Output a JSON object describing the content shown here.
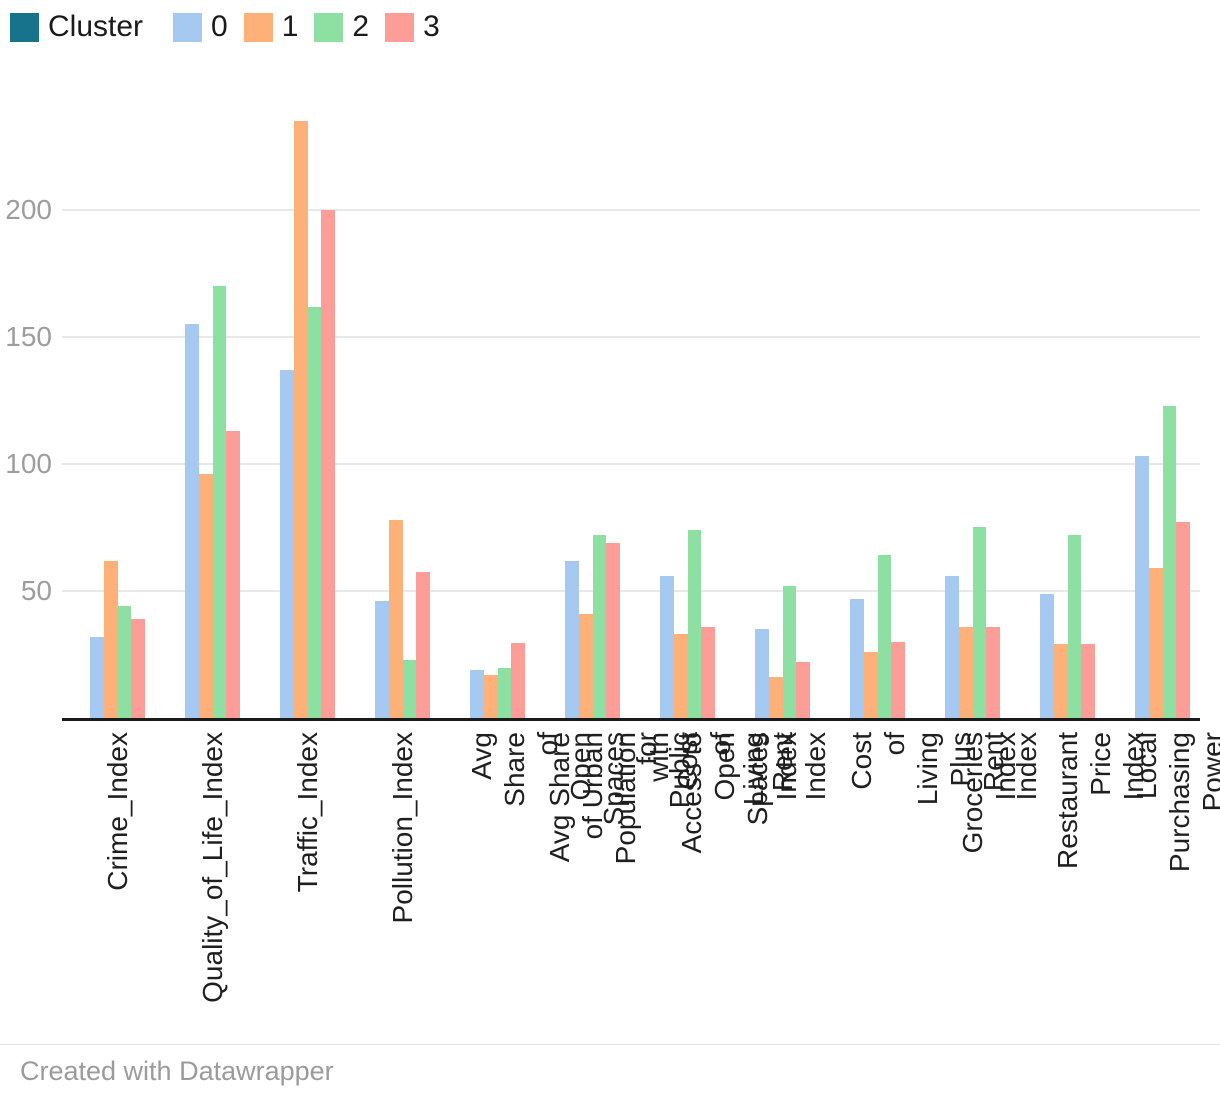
{
  "legend": {
    "title": "Cluster",
    "title_color": "#17738b",
    "items": [
      {
        "label": "0",
        "color": "#a6c9f2"
      },
      {
        "label": "1",
        "color": "#fdb179"
      },
      {
        "label": "2",
        "color": "#8de0a2"
      },
      {
        "label": "3",
        "color": "#fc9d98"
      }
    ]
  },
  "chart_data": {
    "type": "bar",
    "title": "",
    "xlabel": "",
    "ylabel": "",
    "categories": [
      "Crime_Index",
      "Quality_of_Life_Index",
      "Traffic_Index",
      "Pollution_Index",
      "Avg Share of Open Spaces\nfor Public",
      "Avg Share of Urban\nPopulation with Access to\nOpen Spaces",
      "Cost of Living Index",
      "Rent Index",
      "Cost of Living Plus Rent\nIndex",
      "Groceries Index",
      "Restaurant Price Index",
      "Local Purchasing Power\nIndex"
    ],
    "series": [
      {
        "name": "0",
        "color": "#a6c9f2",
        "values": [
          32,
          155,
          137,
          46,
          19,
          62,
          56,
          35,
          47,
          56,
          49,
          103
        ]
      },
      {
        "name": "1",
        "color": "#fdb179",
        "values": [
          62,
          96,
          235,
          78,
          17,
          41,
          33,
          16,
          26,
          36,
          29,
          59
        ]
      },
      {
        "name": "2",
        "color": "#8de0a2",
        "values": [
          44,
          170,
          162,
          23,
          19.5,
          72,
          74,
          52,
          64,
          75,
          72,
          123
        ]
      },
      {
        "name": "3",
        "color": "#fc9d98",
        "values": [
          39,
          113,
          200,
          57.5,
          29.5,
          69,
          36,
          22,
          30,
          36,
          29,
          77
        ]
      }
    ],
    "yticks": [
      50,
      100,
      150,
      200
    ],
    "ylim": [
      0,
      251
    ],
    "grid": true,
    "legend_position": "top-left"
  },
  "footer": {
    "credit": "Created with Datawrapper"
  },
  "colors": {
    "gridline": "#e8e8e8",
    "axis": "#1a1a1a",
    "tick_label": "#9d9d9d"
  }
}
